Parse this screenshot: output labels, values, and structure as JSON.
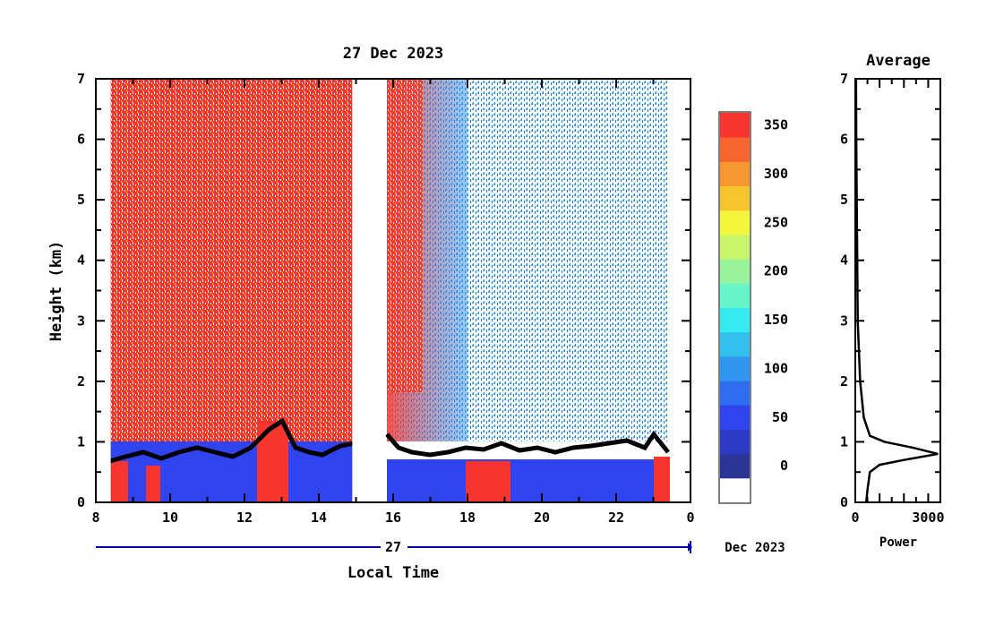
{
  "chart_data": [
    {
      "type": "heatmap",
      "title": "27 Dec 2023",
      "xlabel": "Local Time",
      "ylabel": "Height (km)",
      "x_ticks": [
        8,
        10,
        12,
        14,
        16,
        18,
        20,
        22,
        0
      ],
      "xlim": [
        8,
        24
      ],
      "y_ticks": [
        0,
        1,
        2,
        3,
        4,
        5,
        6,
        7
      ],
      "ylim": [
        0,
        7
      ],
      "date_bar": {
        "day": "27",
        "month_year": "Dec 2023"
      },
      "data_gaps_hours": [
        [
          8.0,
          8.4
        ],
        [
          14.9,
          15.8
        ],
        [
          23.5,
          24.0
        ]
      ],
      "colorbar": {
        "ticks": [
          0,
          50,
          100,
          150,
          200,
          250,
          300,
          350
        ],
        "colors": [
          "#ffffff",
          "#2b3596",
          "#2c3ac6",
          "#2f43ef",
          "#2f6df0",
          "#2f95ef",
          "#34c0ef",
          "#35eaf0",
          "#64f5c8",
          "#98f39a",
          "#c7f56b",
          "#f4f63b",
          "#f8c52f",
          "#f8962f",
          "#f7652f",
          "#f7352f"
        ]
      }
    },
    {
      "type": "line",
      "title": "Average",
      "xlabel": "Power",
      "x_ticks": [
        0,
        3000
      ],
      "xlim": [
        0,
        3500
      ],
      "y_ticks": [
        0,
        1,
        2,
        3,
        4,
        5,
        6,
        7
      ],
      "ylim": [
        0,
        7
      ],
      "series": [
        {
          "x": [
            450,
            500,
            600,
            1000,
            2000,
            3400,
            2400,
            1200,
            600,
            350,
            300,
            200,
            150,
            100,
            80,
            60,
            40,
            30
          ],
          "y": [
            0,
            0.2,
            0.5,
            0.62,
            0.7,
            0.8,
            0.9,
            1.0,
            1.1,
            1.4,
            1.6,
            2.0,
            2.5,
            3.0,
            4.0,
            5.0,
            6.0,
            7.0
          ]
        }
      ]
    }
  ]
}
